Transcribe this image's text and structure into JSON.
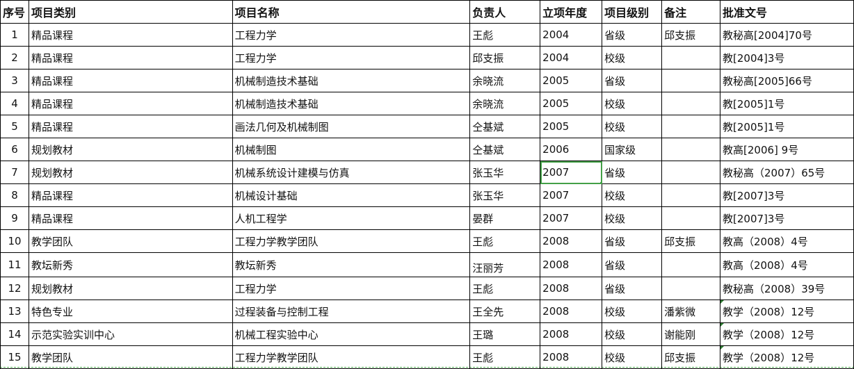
{
  "headers": [
    "序号",
    "项目类别",
    "项目名称",
    "负责人",
    "立项年度",
    "项目级别",
    "备注",
    "批准文号"
  ],
  "rows": [
    [
      "1",
      "精品课程",
      "工程力学",
      "王彪",
      "2004",
      "省级",
      "邱支振",
      "教秘高[2004]70号"
    ],
    [
      "2",
      "精品课程",
      "工程力学",
      "邱支振",
      "2004",
      "校级",
      "",
      "教[2004]3号"
    ],
    [
      "3",
      "精品课程",
      "机械制造技术基础",
      "余晓流",
      "2005",
      "省级",
      "",
      "教秘高[2005]66号"
    ],
    [
      "4",
      "精品课程",
      "机械制造技术基础",
      "余晓流",
      "2005",
      "校级",
      "",
      "教[2005]1号"
    ],
    [
      "5",
      "精品课程",
      "画法几何及机械制图",
      "仝基斌",
      "2005",
      "校级",
      "",
      "教[2005]1号"
    ],
    [
      "6",
      "规划教材",
      "机械制图",
      "仝基斌",
      "2006",
      "国家级",
      "",
      "教高[2006] 9号"
    ],
    [
      "7",
      "规划教材",
      "机械系统设计建模与仿真",
      "张玉华",
      "2007",
      "省级",
      "",
      "教秘高（2007）65号"
    ],
    [
      "8",
      "精品课程",
      "机械设计基础",
      "张玉华",
      "2007",
      "校级",
      "",
      "教[2007]3号"
    ],
    [
      "9",
      "精品课程",
      "人机工程学",
      "晏群",
      "2007",
      "校级",
      "",
      "教[2007]3号"
    ],
    [
      "10",
      "教学团队",
      "工程力学教学团队",
      "王彪",
      "2008",
      "省级",
      "邱支振",
      "教高（2008）4号"
    ],
    [
      "11",
      "教坛新秀",
      "教坛新秀",
      "汪丽芳",
      "2008",
      "省级",
      "",
      "教高（2008）4号"
    ],
    [
      "12",
      "规划教材",
      "工程力学",
      "王彪",
      "2008",
      "省级",
      "",
      "教秘高（2008）39号"
    ],
    [
      "13",
      "特色专业",
      "过程装备与控制工程",
      "王全先",
      "2008",
      "校级",
      "潘紫微",
      "教学（2008）12号"
    ],
    [
      "14",
      "示范实验实训中心",
      "机械工程实验中心",
      "王璐",
      "2008",
      "校级",
      "谢能刚",
      "教学（2008）12号"
    ],
    [
      "15",
      "教学团队",
      "工程力学教学团队",
      "王彪",
      "2008",
      "校级",
      "邱支振",
      "教学（2008）12号"
    ]
  ],
  "selected_cell": {
    "row": 7,
    "column": "立项年度"
  },
  "colors": {
    "selection": "#43a047",
    "grid": "#000000"
  }
}
